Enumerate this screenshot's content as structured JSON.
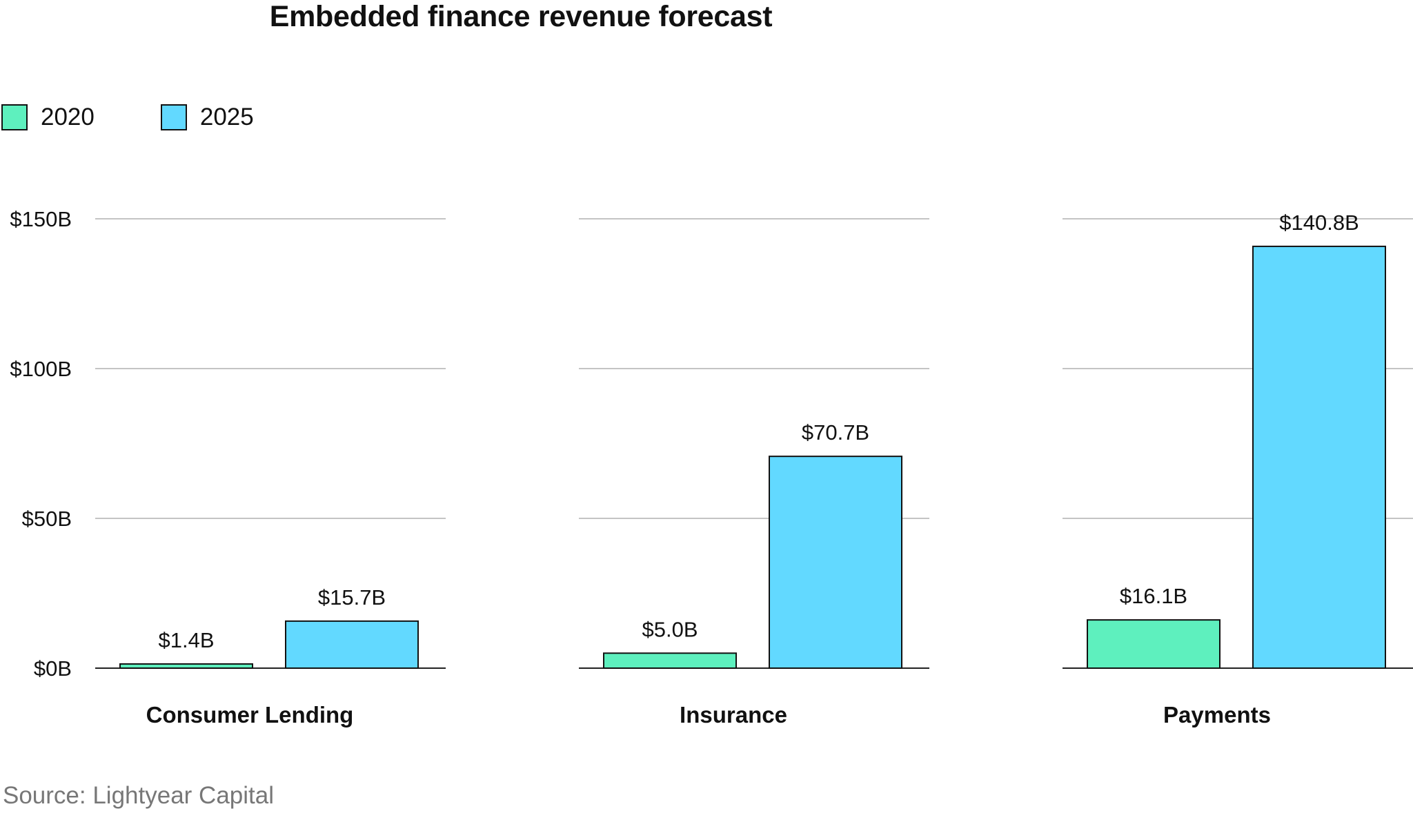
{
  "chart_data": {
    "type": "bar",
    "title": "Embedded finance revenue forecast",
    "categories": [
      "Consumer Lending",
      "Insurance",
      "Payments"
    ],
    "series": [
      {
        "name": "2020",
        "color": "#5ef0be",
        "values": [
          1.4,
          5.0,
          16.1
        ],
        "labels": [
          "$1.4B",
          "$5.0B",
          "$16.1B"
        ]
      },
      {
        "name": "2025",
        "color": "#62d9ff",
        "values": [
          15.7,
          70.7,
          140.8
        ],
        "labels": [
          "$15.7B",
          "$70.7B",
          "$140.8B"
        ]
      }
    ],
    "ylim": [
      0,
      150
    ],
    "yticks": [
      0,
      50,
      100,
      150
    ],
    "ytick_labels": [
      "$0B",
      "$50B",
      "$100B",
      "$150B"
    ],
    "grid": true,
    "legend_position": "top-left",
    "source": "Source: Lightyear Capital"
  }
}
